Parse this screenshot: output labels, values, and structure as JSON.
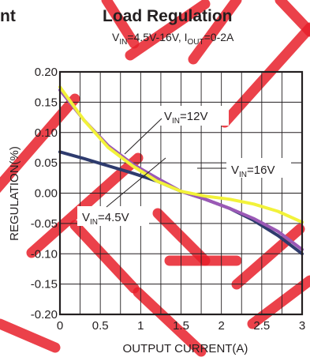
{
  "header": {
    "left_fragment": "nt",
    "title": "Load Regulation",
    "subtitle": {
      "vin_main": "V",
      "vin_sub": "IN",
      "vin_value": "=4.5V-16V, ",
      "iout_main": "I",
      "iout_sub": "OUT",
      "iout_value": "=0-2A"
    }
  },
  "watermark": {
    "color": "#e8202a",
    "opacity": 0.85
  },
  "chart_data": {
    "type": "line",
    "title": "Load Regulation",
    "xlabel": "OUTPUT CURRENT(A)",
    "ylabel": "REGULATION(%)",
    "xlim": [
      0,
      3
    ],
    "ylim": [
      -0.2,
      0.2
    ],
    "grid": true,
    "xticks": [
      0,
      0.5,
      1,
      1.5,
      2,
      2.5,
      3
    ],
    "xtick_labels": [
      "0",
      "0.5",
      "1",
      "1.5",
      "2",
      "2.5",
      "3"
    ],
    "yticks": [
      0.2,
      0.15,
      0.1,
      0.05,
      0.0,
      -0.05,
      -0.1,
      -0.15,
      -0.2
    ],
    "ytick_labels": [
      "0.20",
      "0.15",
      "0.10",
      "0.05",
      "0.00",
      "-0.05",
      "-0.10",
      "-0.15",
      "-0.20"
    ],
    "series": [
      {
        "name": "VIN=4.5V",
        "label_main": "V",
        "label_sub": "IN",
        "label_value": "=4.5V",
        "color": "#2e3b6e",
        "x": [
          0,
          0.3,
          0.6,
          0.9,
          1.2,
          1.5,
          1.8,
          2.1,
          2.4,
          2.7,
          3.0
        ],
        "y": [
          0.068,
          0.057,
          0.045,
          0.033,
          0.02,
          0.003,
          -0.01,
          -0.025,
          -0.045,
          -0.07,
          -0.1
        ]
      },
      {
        "name": "VIN=12V",
        "label_main": "V",
        "label_sub": "IN",
        "label_value": "=12V",
        "color": "#9b59b6",
        "x": [
          0,
          0.3,
          0.6,
          0.9,
          1.2,
          1.5,
          1.8,
          2.1,
          2.4,
          2.7,
          3.0
        ],
        "y": [
          0.17,
          0.12,
          0.078,
          0.048,
          0.025,
          0.003,
          -0.01,
          -0.025,
          -0.042,
          -0.063,
          -0.093
        ]
      },
      {
        "name": "VIN=16V",
        "label_main": "V",
        "label_sub": "IN",
        "label_value": "=16V",
        "color": "#f2f23a",
        "x": [
          0,
          0.3,
          0.6,
          0.9,
          1.2,
          1.5,
          1.8,
          2.1,
          2.4,
          2.7,
          3.0
        ],
        "y": [
          0.175,
          0.12,
          0.075,
          0.045,
          0.02,
          0.003,
          -0.005,
          -0.01,
          -0.018,
          -0.03,
          -0.048
        ]
      }
    ]
  }
}
